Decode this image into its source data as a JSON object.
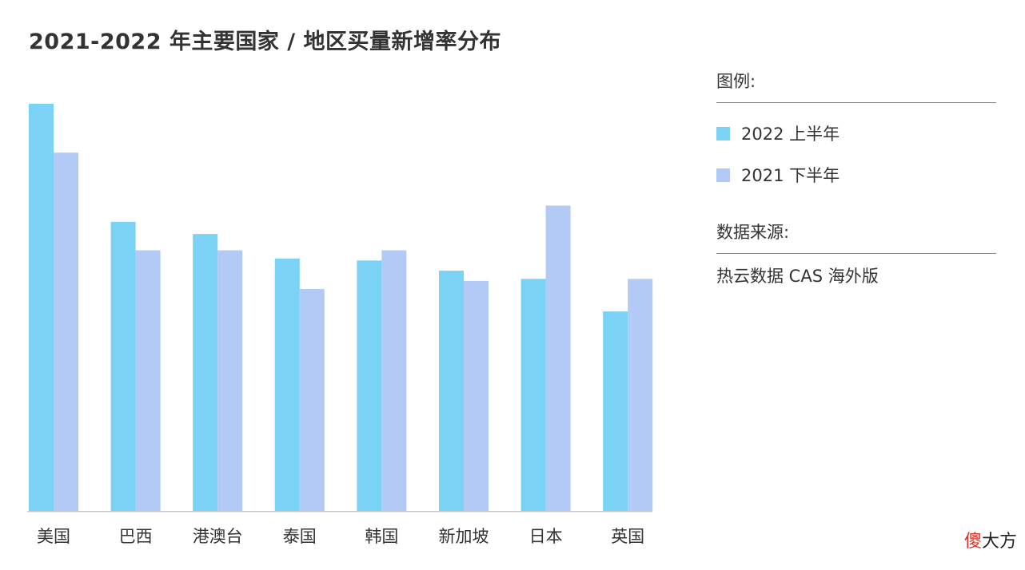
{
  "chart_data": {
    "type": "bar",
    "title": "2021-2022 年主要国家 / 地区买量新增率分布",
    "categories": [
      "美国",
      "巴西",
      "港澳台",
      "泰国",
      "韩国",
      "新加坡",
      "日本",
      "英国"
    ],
    "series": [
      {
        "name": "2022 上半年",
        "values": [
          100,
          71,
          68,
          62,
          61.5,
          59,
          57,
          49
        ],
        "color": "#7ad3f4"
      },
      {
        "name": "2021 下半年",
        "values": [
          88,
          64,
          64,
          54.5,
          64,
          56.5,
          75,
          57
        ],
        "color": "#b3c9f6"
      }
    ],
    "ylim": [
      0,
      100
    ],
    "grid": false,
    "legend_position": "right"
  },
  "legend": {
    "title": "图例:"
  },
  "source": {
    "title": "数据来源:",
    "text": "热云数据 CAS 海外版"
  },
  "watermark": {
    "first": "傻",
    "rest": "大方"
  }
}
